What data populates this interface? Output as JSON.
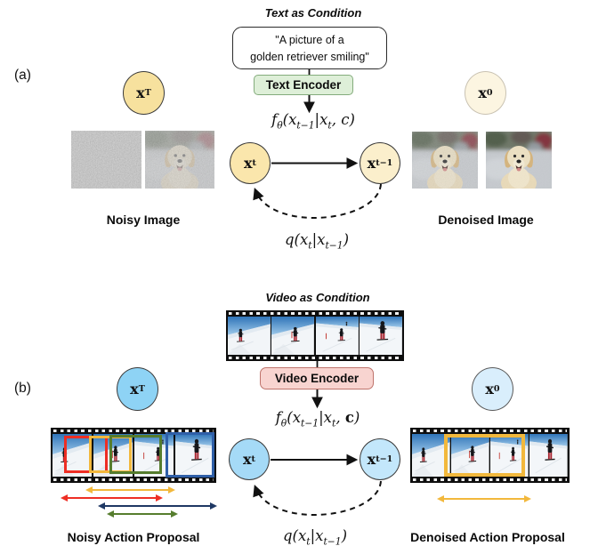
{
  "a": {
    "panel_label": "(a)",
    "condition_title": "Text as Condition",
    "prompt": {
      "line1": "\"A picture of a",
      "line2": "golden retriever smiling\""
    },
    "encoder_label": "Text Encoder",
    "formulas": {
      "forward": "f_{θ}(x_{t−1}|x_{t}, c)",
      "reverse": "q(x_{t}|x_{t−1})"
    },
    "nodes": {
      "xT": "x_{T}",
      "xt": "x_{t}",
      "xt1": "x_{t−1}",
      "x0": "x_{0}"
    },
    "captions": {
      "left": "Noisy Image",
      "right": "Denoised Image"
    }
  },
  "b": {
    "panel_label": "(b)",
    "condition_title": "Video as Condition",
    "encoder_label": "Video Encoder",
    "formulas": {
      "forward": "f_{θ}(x_{t−1}|x_{t}, **c**)",
      "reverse": "q(x_{t}|x_{t−1})"
    },
    "nodes": {
      "xT": "x_{T}",
      "xt": "x_{t}",
      "xt1": "x_{t−1}",
      "x0": "x_{0}"
    },
    "captions": {
      "left": "Noisy Action Proposal",
      "right": "Denoised Action Proposal"
    }
  },
  "colors": {
    "a-node-xT": "#F7E19E",
    "a-node-xt": "#FAE6AC",
    "a-node-xt1": "#FBEFCC",
    "a-node-x0": "#FCF5E1",
    "a-encoder-bg": "#DEEFD8",
    "a-encoder-border": "#84AC7C",
    "b-node-xT": "#8ED3F5",
    "b-node-xt": "#A5DAF7",
    "b-node-xt1": "#C3E7FB",
    "b-node-x0": "#D9EEFC",
    "b-encoder-bg": "#F8D4D0",
    "b-encoder-border": "#BF746C",
    "proposal-red": "#EE2E24",
    "proposal-yellow": "#F2B83C",
    "proposal-green": "#567D2E",
    "proposal-blue": "#2F5FA8",
    "arrow-navy": "#1F3864"
  }
}
